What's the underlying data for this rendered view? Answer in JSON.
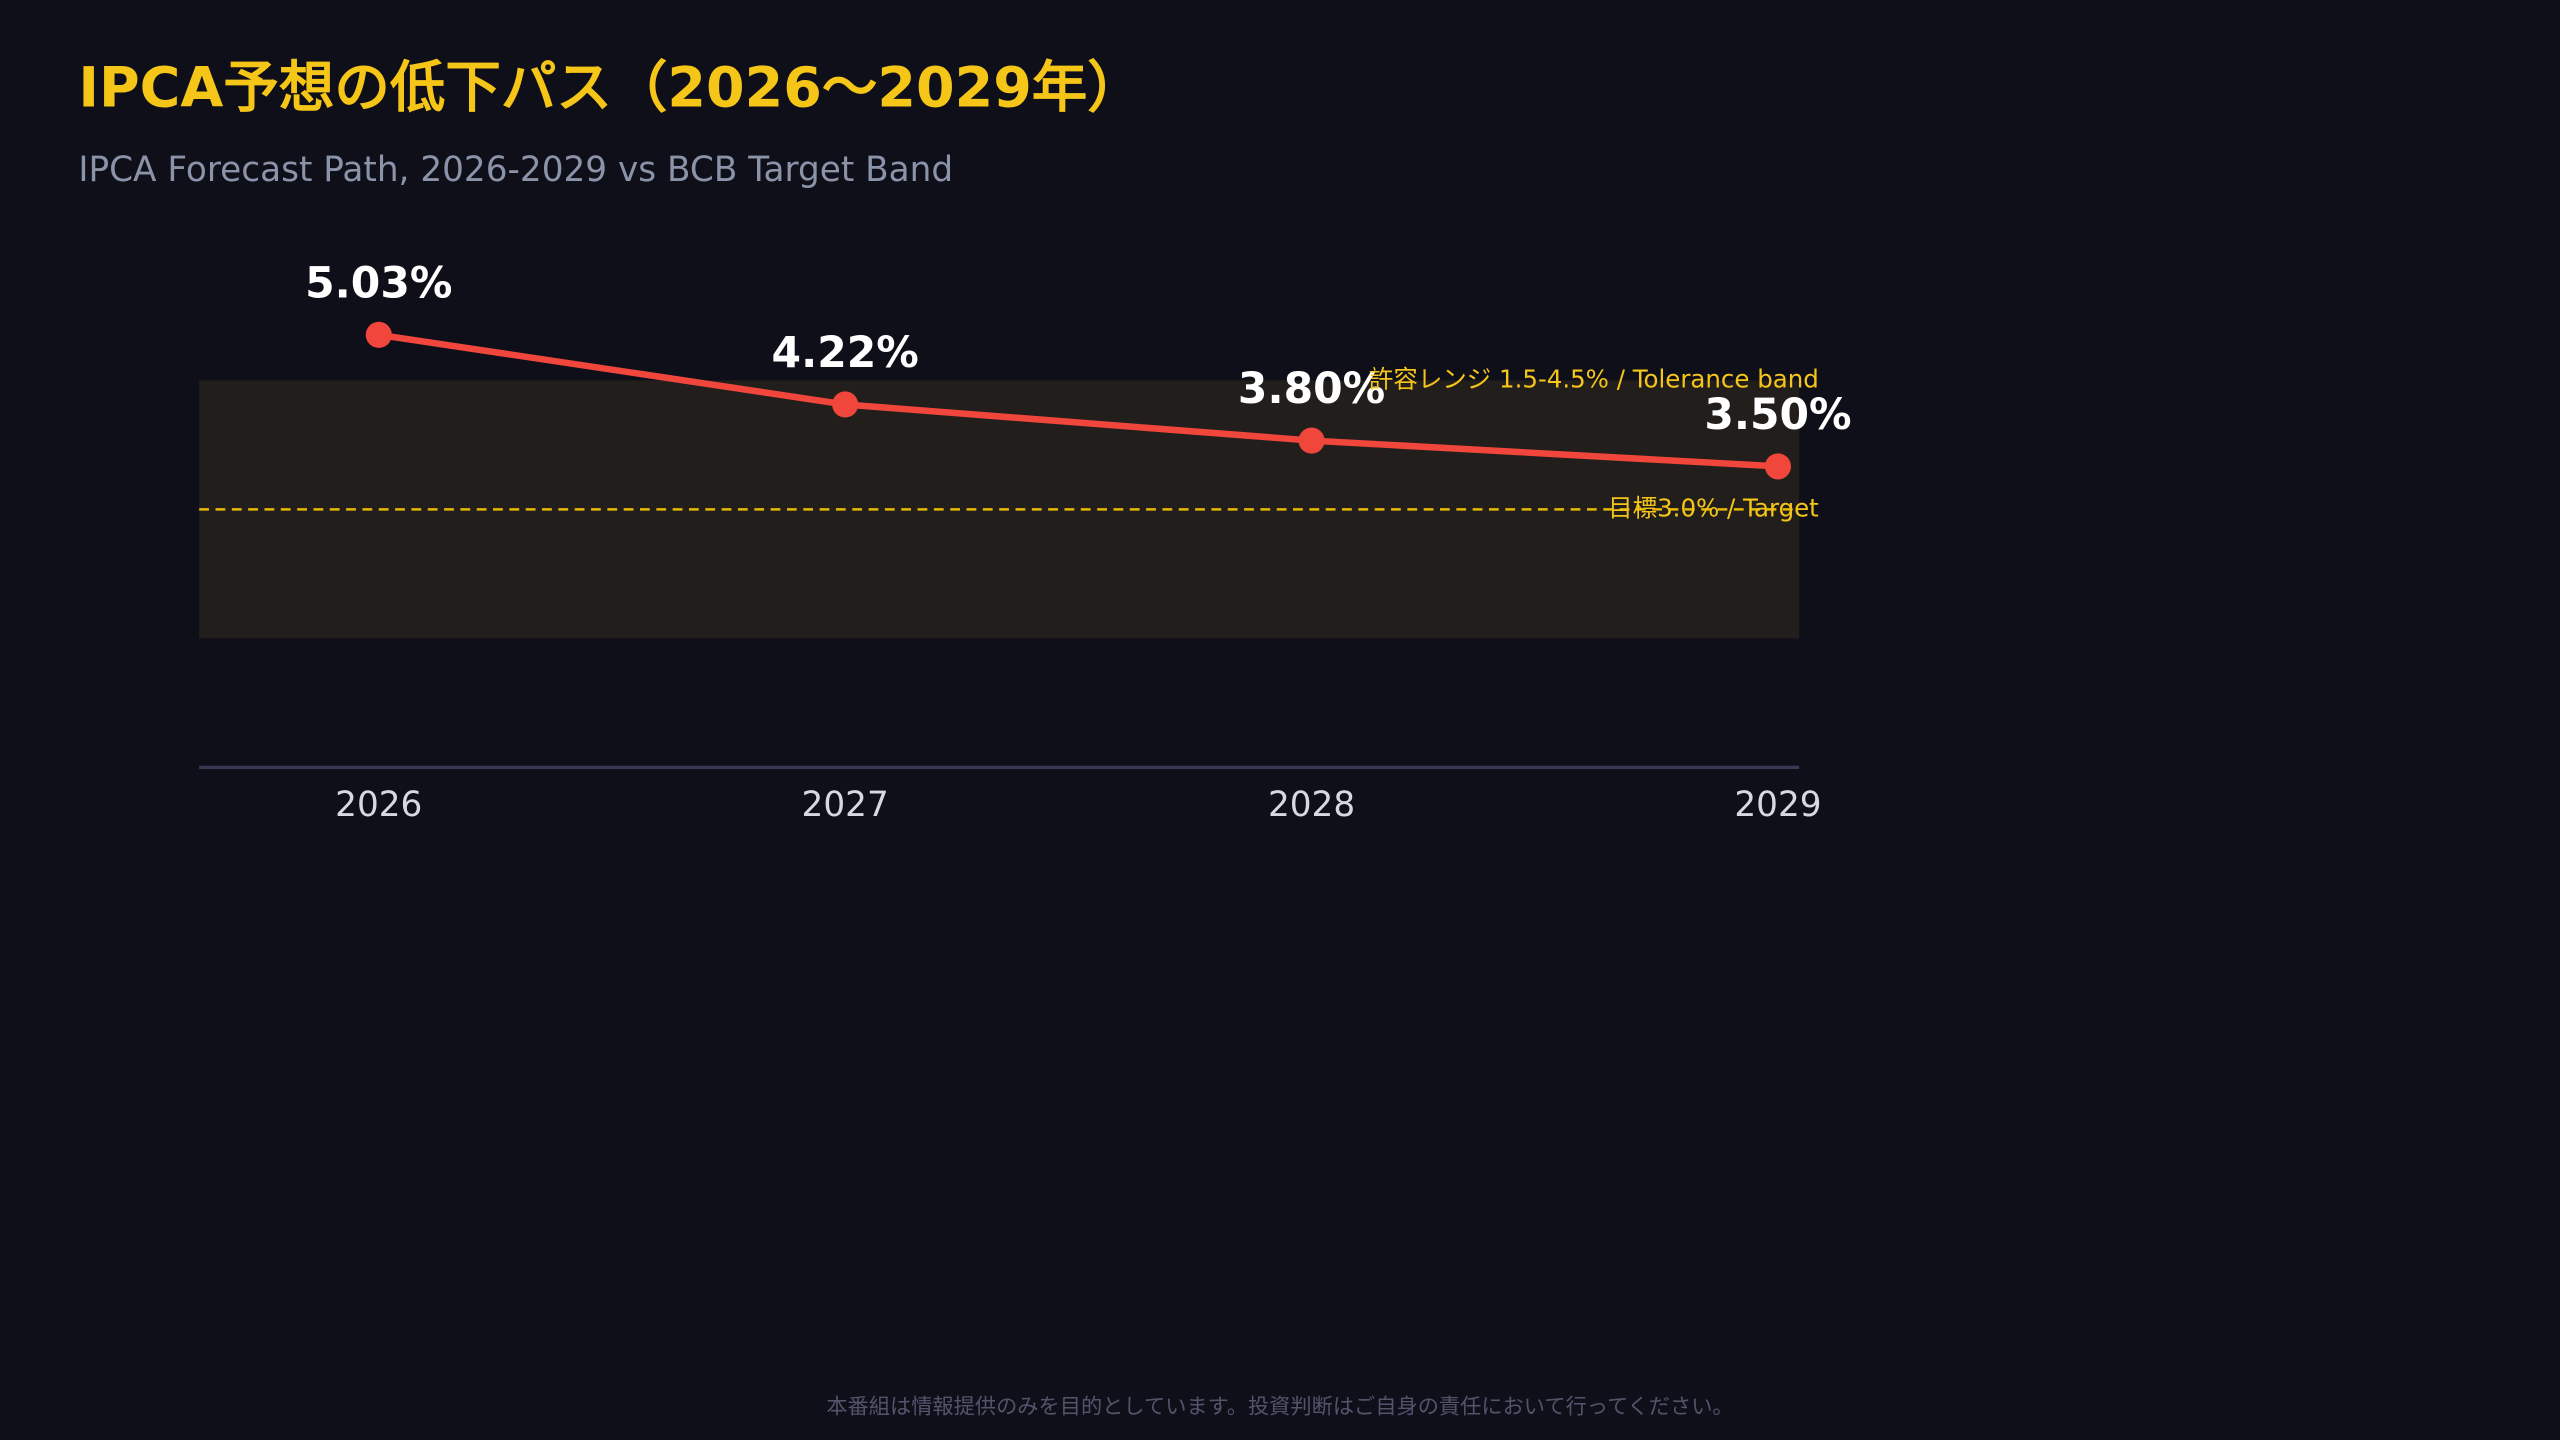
{
  "chart_data": {
    "type": "line",
    "title": "IPCA予想の低下パス（2026〜2029年）",
    "subtitle": "IPCA Forecast Path, 2026-2029 vs BCB Target Band",
    "categories": [
      "2026",
      "2027",
      "2028",
      "2029"
    ],
    "values": [
      5.03,
      4.22,
      3.8,
      3.5
    ],
    "value_labels": [
      "5.03%",
      "4.22%",
      "3.80%",
      "3.50%"
    ],
    "color": "#f0463c",
    "ylim": [
      0,
      6
    ],
    "band": [
      1.5,
      4.5
    ],
    "band_label": "許容レンジ 1.5-4.5% / Tolerance band",
    "target": 3.0,
    "target_label": "目標3.0% / Target",
    "footer": "本番組は情報提供のみを目的としています。投資判断はご自身の責任において行ってください。"
  }
}
